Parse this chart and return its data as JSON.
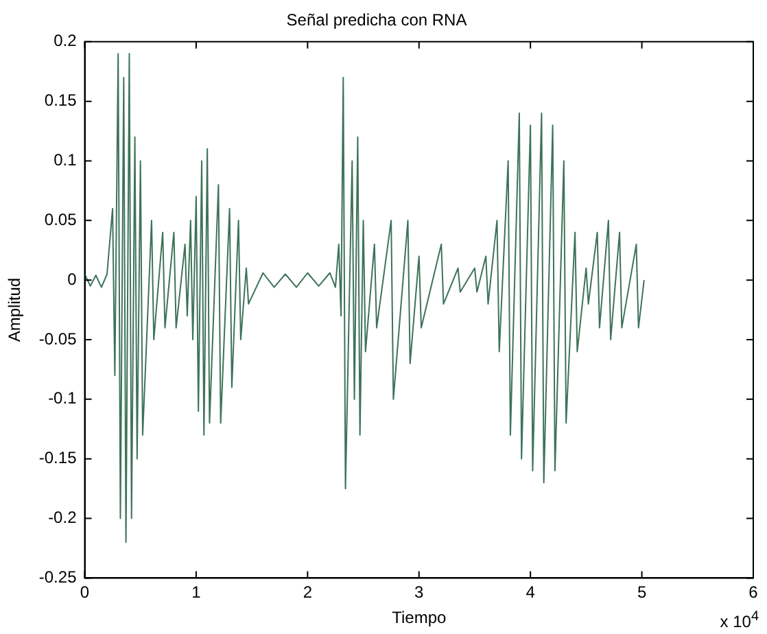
{
  "chart_data": {
    "type": "line",
    "title": "Señal predicha con RNA",
    "xlabel": "Tiempo",
    "ylabel": "Amplitud",
    "annotations": [
      "x 10$^{4}$"
    ],
    "x": [
      0,
      0.05,
      0.1,
      0.15,
      0.2,
      0.25,
      0.27,
      0.3,
      0.32,
      0.35,
      0.37,
      0.4,
      0.42,
      0.45,
      0.47,
      0.5,
      0.52,
      0.6,
      0.62,
      0.7,
      0.72,
      0.8,
      0.82,
      0.9,
      0.92,
      0.95,
      0.97,
      1.0,
      1.02,
      1.05,
      1.07,
      1.1,
      1.12,
      1.2,
      1.22,
      1.3,
      1.32,
      1.38,
      1.4,
      1.45,
      1.47,
      1.6,
      1.7,
      1.8,
      1.9,
      2.0,
      2.1,
      2.2,
      2.25,
      2.28,
      2.3,
      2.32,
      2.34,
      2.4,
      2.42,
      2.45,
      2.47,
      2.5,
      2.52,
      2.6,
      2.62,
      2.75,
      2.77,
      2.9,
      2.92,
      3.0,
      3.02,
      3.2,
      3.22,
      3.35,
      3.37,
      3.5,
      3.52,
      3.6,
      3.62,
      3.7,
      3.72,
      3.8,
      3.82,
      3.9,
      3.92,
      4.0,
      4.02,
      4.1,
      4.12,
      4.2,
      4.22,
      4.3,
      4.32,
      4.4,
      4.42,
      4.5,
      4.52,
      4.6,
      4.62,
      4.7,
      4.72,
      4.8,
      4.82,
      4.95,
      4.97,
      5.02
    ],
    "series": [
      {
        "color": "#3d7358",
        "values": [
          0.005,
          -0.005,
          0.004,
          -0.006,
          0.005,
          0.06,
          -0.08,
          0.19,
          -0.2,
          0.17,
          -0.22,
          0.19,
          -0.2,
          0.12,
          -0.15,
          0.1,
          -0.13,
          0.05,
          -0.05,
          0.04,
          -0.04,
          0.04,
          -0.04,
          0.03,
          -0.03,
          0.05,
          -0.05,
          0.07,
          -0.11,
          0.1,
          -0.13,
          0.11,
          -0.12,
          0.08,
          -0.12,
          0.06,
          -0.09,
          0.05,
          -0.05,
          0.01,
          -0.02,
          0.006,
          -0.006,
          0.005,
          -0.006,
          0.006,
          -0.005,
          0.006,
          -0.006,
          0.03,
          -0.03,
          0.17,
          -0.175,
          0.1,
          -0.1,
          0.12,
          -0.13,
          0.05,
          -0.06,
          0.03,
          -0.04,
          0.05,
          -0.1,
          0.05,
          -0.07,
          0.02,
          -0.04,
          0.03,
          -0.02,
          0.01,
          -0.01,
          0.01,
          -0.01,
          0.02,
          -0.02,
          0.05,
          -0.06,
          0.1,
          -0.13,
          0.14,
          -0.15,
          0.13,
          -0.16,
          0.14,
          -0.17,
          0.13,
          -0.16,
          0.1,
          -0.12,
          0.04,
          -0.06,
          0.01,
          -0.02,
          0.04,
          -0.04,
          0.05,
          -0.05,
          0.04,
          -0.04,
          0.03,
          -0.04,
          0
        ]
      }
    ],
    "xlim": [
      0,
      6
    ],
    "xticks": [
      0,
      1,
      2,
      3,
      4,
      5,
      6
    ],
    "ylim": [
      -0.25,
      0.2
    ],
    "yticks": [
      -0.25,
      -0.2,
      -0.15,
      -0.1,
      -0.05,
      0,
      0.05,
      0.1,
      0.15,
      0.2
    ],
    "grid": false,
    "legend": false,
    "marker": "none",
    "line_style": "solid"
  }
}
